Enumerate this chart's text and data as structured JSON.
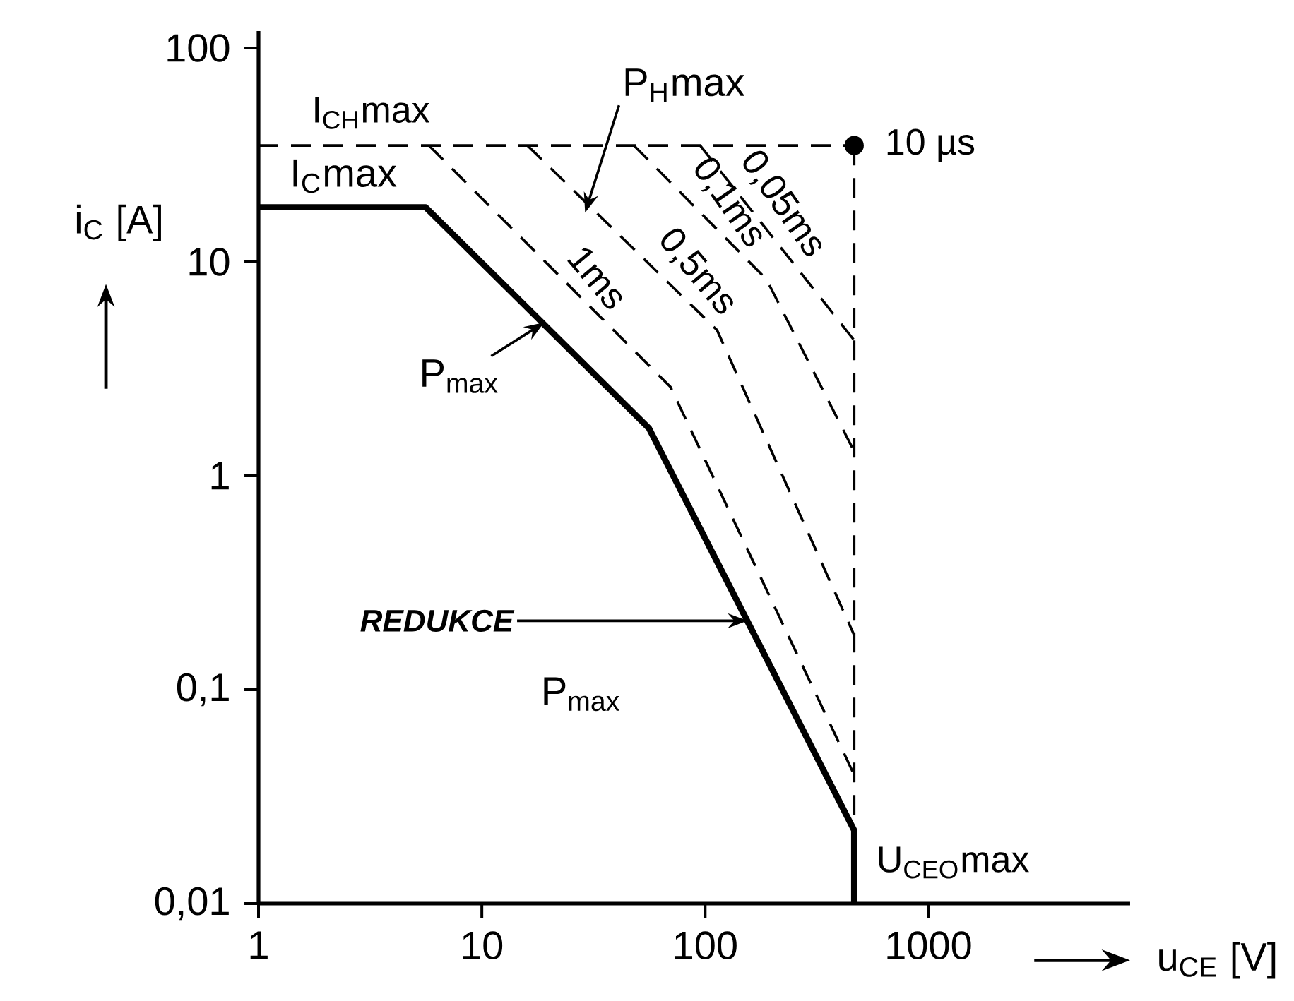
{
  "chart_data": {
    "type": "line",
    "log": "xy",
    "xlabel": "u$_{CE}$ [V]",
    "ylabel": "i$_{C}$ [A]",
    "xlim": [
      1,
      8000
    ],
    "ylim": [
      0.01,
      120
    ],
    "xticks": [
      1,
      10,
      100,
      1000
    ],
    "yticks": [
      {
        "value": 0.01,
        "label": "0,01"
      },
      {
        "value": 0.1,
        "label": "0,1"
      },
      1,
      10,
      100
    ],
    "series": [
      {
        "color": "#000000",
        "line_style": "solid",
        "x": [
          1,
          5.6,
          56,
          465,
          465
        ],
        "values": [
          18,
          18,
          1.67,
          0.022,
          0.01
        ]
      },
      {
        "name": "I$_{CH}$max",
        "color": "#000000",
        "line_style": "dashed",
        "x": [
          1,
          465
        ],
        "values": [
          35,
          35
        ]
      },
      {
        "name": "U$_{CEO}$max",
        "color": "#000000",
        "line_style": "dashed",
        "x": [
          465,
          465
        ],
        "values": [
          35,
          0.01
        ]
      },
      {
        "name": "1ms",
        "color": "#000000",
        "line_style": "dashed",
        "x": [
          5.8,
          70,
          465
        ],
        "values": [
          35,
          2.6,
          0.04
        ]
      },
      {
        "name": "0,5ms",
        "color": "#000000",
        "line_style": "dashed",
        "x": [
          16,
          113,
          465
        ],
        "values": [
          35,
          4.8,
          0.18
        ]
      },
      {
        "name": "0,1ms",
        "color": "#000000",
        "line_style": "dashed",
        "x": [
          48,
          188,
          465
        ],
        "values": [
          35,
          8.3,
          1.3
        ]
      },
      {
        "name": "0,05ms",
        "color": "#000000",
        "line_style": "dashed",
        "x": [
          95,
          465
        ],
        "values": [
          35,
          4.3
        ]
      },
      {
        "name": "10 µs",
        "type": "scatter",
        "marker": "circle",
        "color": "#000000",
        "x": [
          465
        ],
        "values": [
          35
        ]
      }
    ],
    "annotations": [
      {
        "text": "I$_{C}$max",
        "x": 2.4,
        "y": 18
      },
      {
        "text": "P$_{H}$max",
        "x": 29,
        "y": 17
      },
      {
        "text": "P$_{max}$",
        "x": 19,
        "y": 5.2
      },
      {
        "text": "REDUKCE",
        "x": 155,
        "y": 0.21
      },
      "P$_{max}$"
    ]
  }
}
